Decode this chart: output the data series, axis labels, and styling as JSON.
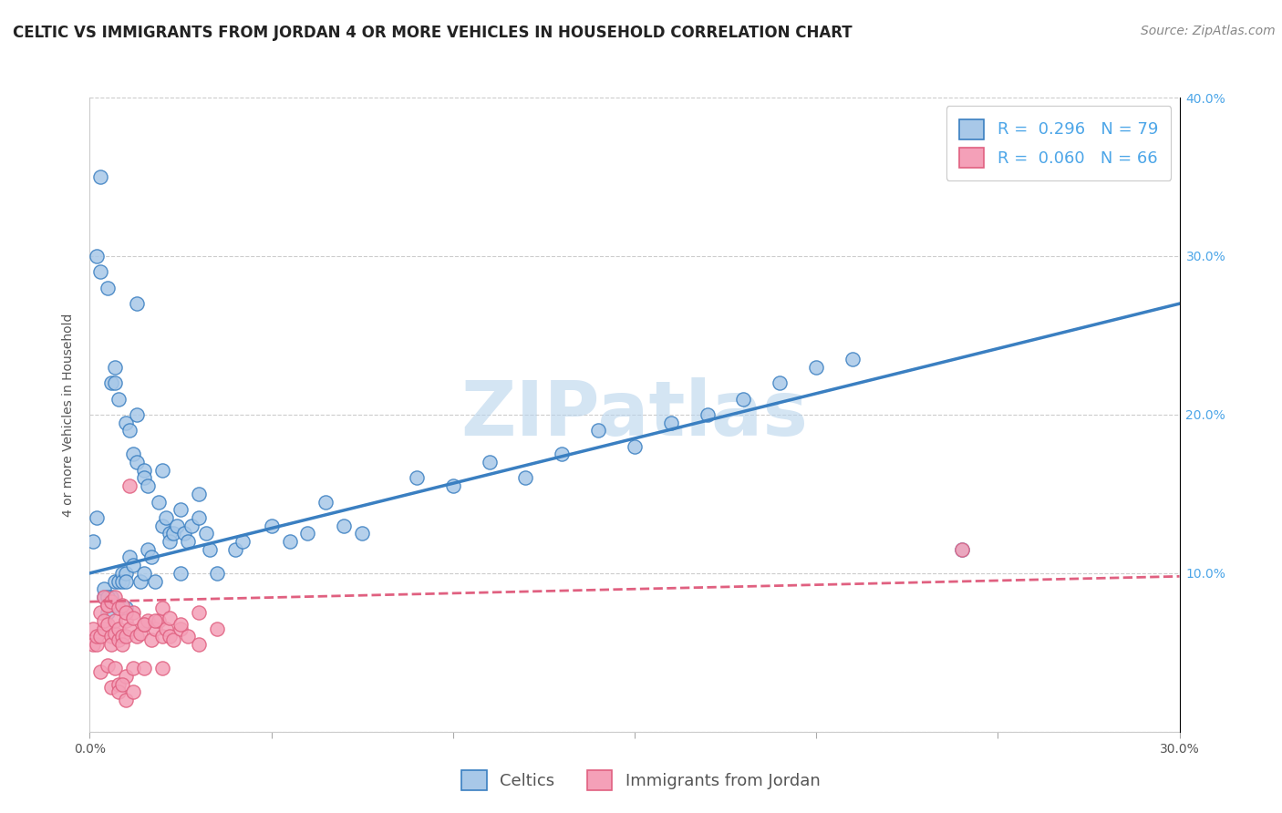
{
  "title": "CELTIC VS IMMIGRANTS FROM JORDAN 4 OR MORE VEHICLES IN HOUSEHOLD CORRELATION CHART",
  "source": "Source: ZipAtlas.com",
  "xlabel_celtics": "Celtics",
  "xlabel_jordan": "Immigrants from Jordan",
  "ylabel": "4 or more Vehicles in Household",
  "watermark": "ZIPatlas",
  "legend_r1": "R =  0.296",
  "legend_n1": "N = 79",
  "legend_r2": "R =  0.060",
  "legend_n2": "N = 66",
  "xlim": [
    0.0,
    0.3
  ],
  "ylim": [
    0.0,
    0.4
  ],
  "xticks": [
    0.0,
    0.05,
    0.1,
    0.15,
    0.2,
    0.25,
    0.3
  ],
  "yticks": [
    0.0,
    0.1,
    0.2,
    0.3,
    0.4
  ],
  "xtick_labels": [
    "0.0%",
    "",
    "",
    "",
    "",
    "",
    "30.0%"
  ],
  "ytick_labels": [
    "",
    "10.0%",
    "20.0%",
    "30.0%",
    "40.0%"
  ],
  "color_celtics": "#a8c8e8",
  "color_jordan": "#f4a0b8",
  "color_trend_celtics": "#3a7fc1",
  "color_trend_jordan": "#e06080",
  "celtics_x": [
    0.001,
    0.002,
    0.002,
    0.003,
    0.003,
    0.004,
    0.004,
    0.005,
    0.005,
    0.006,
    0.006,
    0.007,
    0.007,
    0.007,
    0.008,
    0.008,
    0.009,
    0.009,
    0.01,
    0.01,
    0.01,
    0.011,
    0.011,
    0.012,
    0.012,
    0.013,
    0.013,
    0.014,
    0.015,
    0.015,
    0.016,
    0.016,
    0.017,
    0.018,
    0.019,
    0.02,
    0.021,
    0.022,
    0.022,
    0.023,
    0.024,
    0.025,
    0.026,
    0.027,
    0.028,
    0.03,
    0.032,
    0.033,
    0.035,
    0.04,
    0.042,
    0.05,
    0.055,
    0.06,
    0.065,
    0.07,
    0.075,
    0.09,
    0.1,
    0.11,
    0.12,
    0.13,
    0.14,
    0.15,
    0.16,
    0.17,
    0.18,
    0.19,
    0.2,
    0.21,
    0.005,
    0.007,
    0.01,
    0.013,
    0.015,
    0.02,
    0.025,
    0.03,
    0.24
  ],
  "celtics_y": [
    0.12,
    0.3,
    0.135,
    0.29,
    0.35,
    0.085,
    0.09,
    0.28,
    0.075,
    0.085,
    0.22,
    0.095,
    0.23,
    0.22,
    0.095,
    0.21,
    0.1,
    0.095,
    0.195,
    0.1,
    0.095,
    0.11,
    0.19,
    0.175,
    0.105,
    0.2,
    0.17,
    0.095,
    0.165,
    0.16,
    0.115,
    0.155,
    0.11,
    0.095,
    0.145,
    0.13,
    0.135,
    0.125,
    0.12,
    0.125,
    0.13,
    0.14,
    0.125,
    0.12,
    0.13,
    0.15,
    0.125,
    0.115,
    0.1,
    0.115,
    0.12,
    0.13,
    0.12,
    0.125,
    0.145,
    0.13,
    0.125,
    0.16,
    0.155,
    0.17,
    0.16,
    0.175,
    0.19,
    0.18,
    0.195,
    0.2,
    0.21,
    0.22,
    0.23,
    0.235,
    0.085,
    0.08,
    0.078,
    0.27,
    0.1,
    0.165,
    0.1,
    0.135,
    0.115
  ],
  "jordan_x": [
    0.001,
    0.001,
    0.002,
    0.002,
    0.003,
    0.003,
    0.003,
    0.004,
    0.004,
    0.005,
    0.005,
    0.005,
    0.006,
    0.006,
    0.006,
    0.007,
    0.007,
    0.007,
    0.008,
    0.008,
    0.008,
    0.009,
    0.009,
    0.01,
    0.01,
    0.01,
    0.011,
    0.011,
    0.012,
    0.012,
    0.013,
    0.014,
    0.015,
    0.015,
    0.016,
    0.017,
    0.018,
    0.019,
    0.02,
    0.02,
    0.021,
    0.022,
    0.023,
    0.025,
    0.027,
    0.03,
    0.035,
    0.004,
    0.005,
    0.006,
    0.007,
    0.008,
    0.009,
    0.01,
    0.012,
    0.015,
    0.018,
    0.02,
    0.022,
    0.025,
    0.03,
    0.008,
    0.009,
    0.01,
    0.012,
    0.24
  ],
  "jordan_y": [
    0.065,
    0.055,
    0.055,
    0.06,
    0.06,
    0.075,
    0.038,
    0.065,
    0.07,
    0.068,
    0.08,
    0.042,
    0.06,
    0.055,
    0.028,
    0.062,
    0.07,
    0.04,
    0.058,
    0.065,
    0.03,
    0.06,
    0.055,
    0.07,
    0.06,
    0.035,
    0.155,
    0.065,
    0.075,
    0.04,
    0.06,
    0.062,
    0.068,
    0.04,
    0.07,
    0.058,
    0.065,
    0.07,
    0.06,
    0.04,
    0.065,
    0.06,
    0.058,
    0.065,
    0.06,
    0.055,
    0.065,
    0.085,
    0.08,
    0.082,
    0.085,
    0.078,
    0.08,
    0.075,
    0.072,
    0.068,
    0.07,
    0.078,
    0.072,
    0.068,
    0.075,
    0.025,
    0.03,
    0.02,
    0.025,
    0.115
  ],
  "trend_celtics_x0": 0.0,
  "trend_celtics_x1": 0.3,
  "trend_celtics_y0": 0.1,
  "trend_celtics_y1": 0.27,
  "trend_jordan_x0": 0.0,
  "trend_jordan_x1": 0.3,
  "trend_jordan_y0": 0.082,
  "trend_jordan_y1": 0.098,
  "title_fontsize": 12,
  "source_fontsize": 10,
  "axis_label_fontsize": 10,
  "tick_fontsize": 10,
  "legend_fontsize": 13,
  "watermark_fontsize": 60,
  "background_color": "#ffffff"
}
